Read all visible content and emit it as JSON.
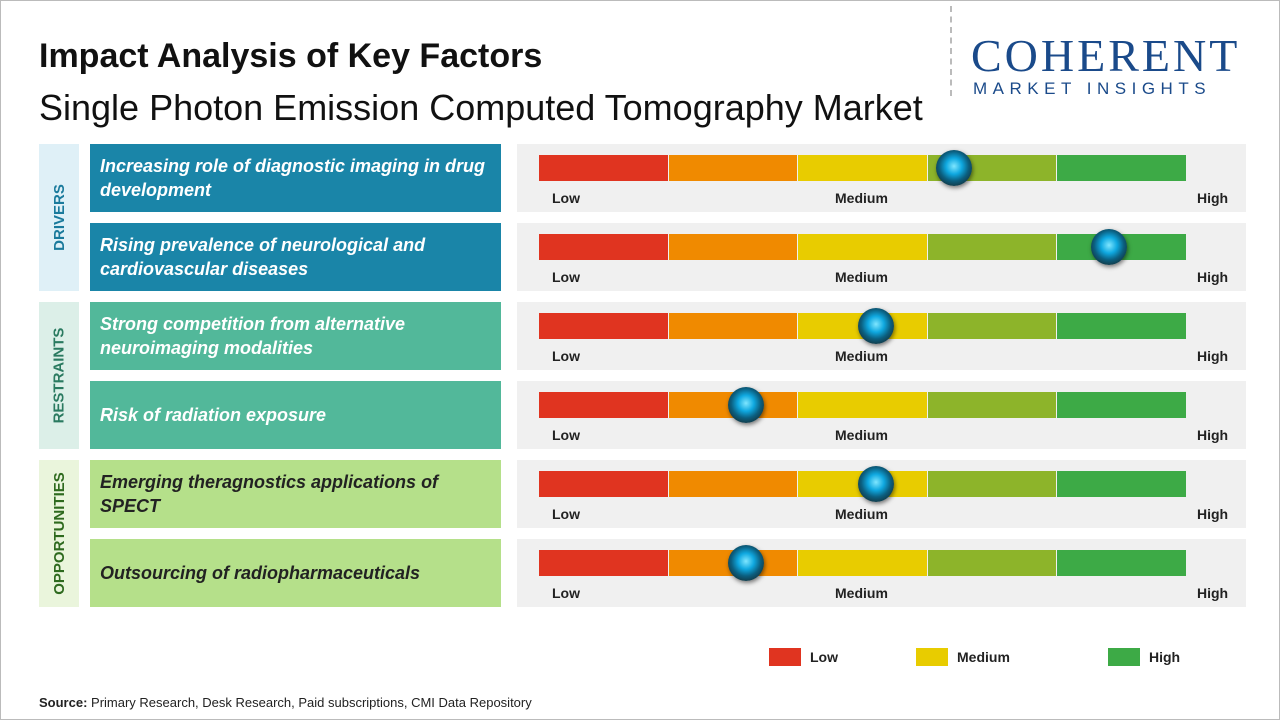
{
  "title": "Impact Analysis of Key Factors",
  "subtitle": "Single Photon Emission Computed Tomography Market",
  "logo": {
    "name": "COHERENT",
    "tagline": "MARKET INSIGHTS"
  },
  "scale": {
    "min": 0,
    "max": 5,
    "labels": [
      "Low",
      "Medium",
      "High"
    ],
    "colors": [
      "#e03420",
      "#f08a00",
      "#e8cc00",
      "#8db42a",
      "#3daa46"
    ]
  },
  "groups": [
    {
      "name": "DRIVERS",
      "factors": [
        {
          "text": "Increasing role of diagnostic imaging in drug development",
          "impact": 3.2
        },
        {
          "text": "Rising prevalence of neurological and cardiovascular diseases",
          "impact": 4.4
        }
      ]
    },
    {
      "name": "RESTRAINTS",
      "factors": [
        {
          "text": "Strong competition from alternative neuroimaging modalities",
          "impact": 2.6
        },
        {
          "text": "Risk of radiation exposure",
          "impact": 1.6
        }
      ]
    },
    {
      "name": "OPPORTUNITIES",
      "factors": [
        {
          "text": "Emerging theragnostics applications of SPECT",
          "impact": 2.6
        },
        {
          "text": "Outsourcing of radiopharmaceuticals",
          "impact": 1.6
        }
      ]
    }
  ],
  "legend": [
    {
      "label": "Low",
      "color": "#e03420"
    },
    {
      "label": "Medium",
      "color": "#e8cc00"
    },
    {
      "label": "High",
      "color": "#3daa46"
    }
  ],
  "source": {
    "label": "Source:",
    "text": "Primary Research, Desk Research, Paid subscriptions, CMI Data Repository"
  }
}
